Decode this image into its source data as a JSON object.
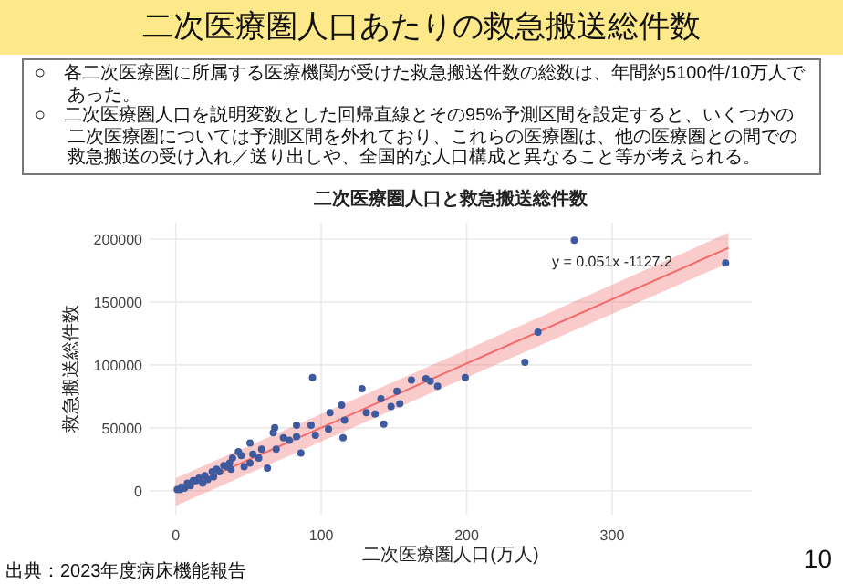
{
  "chart_data": {
    "type": "scatter",
    "title": "二次医療圏人口あたりの救急搬送総件数",
    "subtitle": "二次医療圏人口と救急搬送総件数",
    "xlabel": "二次医療圏人口(万人)",
    "ylabel": "救急搬送総件数",
    "annotations": [
      "○　各二次医療圏に所属する医療機関が受けた救急搬送件数の総数は、年間約5100件/10万人であった。",
      "○　二次医療圏人口を説明変数とした回帰直線とその95%予測区間を設定すると、いくつかの二次医療圏については予測区間を外れており、これらの医療圏は、他の医療圏との間での救急搬送の受け入れ／送り出しや、全国的な人口構成と異なること等が考えられる。",
      "y = 0.051x -1127.2",
      "出典：2023年度病床機能報告",
      "10"
    ],
    "xlim": [
      -18,
      396
    ],
    "ylim": [
      -19000,
      213000
    ],
    "xticks": [
      0,
      100,
      200,
      300
    ],
    "yticks": [
      0,
      50000,
      100000,
      150000,
      200000
    ],
    "grid": true,
    "series": [
      {
        "type": "line",
        "color": "#f26b6b",
        "marker": "none",
        "x": [
          0,
          190,
          380
        ],
        "values": [
          -1000,
          96000,
          193000
        ],
        "lower": [
          -12000,
          85000,
          181000
        ],
        "upper": [
          10000,
          107000,
          205000
        ]
      },
      {
        "color": "#3d5a9e",
        "marker": "circle",
        "x": [
          274,
          378,
          249,
          240,
          199,
          94,
          128,
          141,
          152,
          162,
          172,
          175,
          180,
          154,
          148,
          143,
          137,
          131,
          114,
          116,
          115,
          106,
          105,
          96,
          93,
          83,
          83,
          86,
          78,
          74,
          68,
          67,
          69,
          63,
          59,
          53,
          51,
          45,
          47,
          43,
          39,
          37,
          33,
          28,
          25,
          20,
          16,
          12,
          8,
          4,
          1,
          18.5,
          26,
          38,
          51,
          57,
          10,
          14,
          22,
          30,
          35,
          6,
          3
        ],
        "values": [
          199000,
          181000,
          126000,
          102000,
          90000,
          90000,
          81000,
          73000,
          79000,
          88000,
          89000,
          87000,
          83000,
          69000,
          67000,
          53000,
          61000,
          62000,
          68000,
          56000,
          42000,
          62000,
          49000,
          44000,
          52000,
          52000,
          43000,
          30000,
          40000,
          42000,
          50000,
          46000,
          33000,
          18000,
          33000,
          29000,
          38000,
          28000,
          19000,
          31000,
          26000,
          22000,
          20000,
          17000,
          15000,
          12000,
          10000,
          8000,
          6000,
          3000,
          1000,
          6000,
          11000,
          17000,
          22000,
          26000,
          4000,
          8000,
          9000,
          15000,
          19000,
          2000,
          1000
        ]
      }
    ]
  }
}
